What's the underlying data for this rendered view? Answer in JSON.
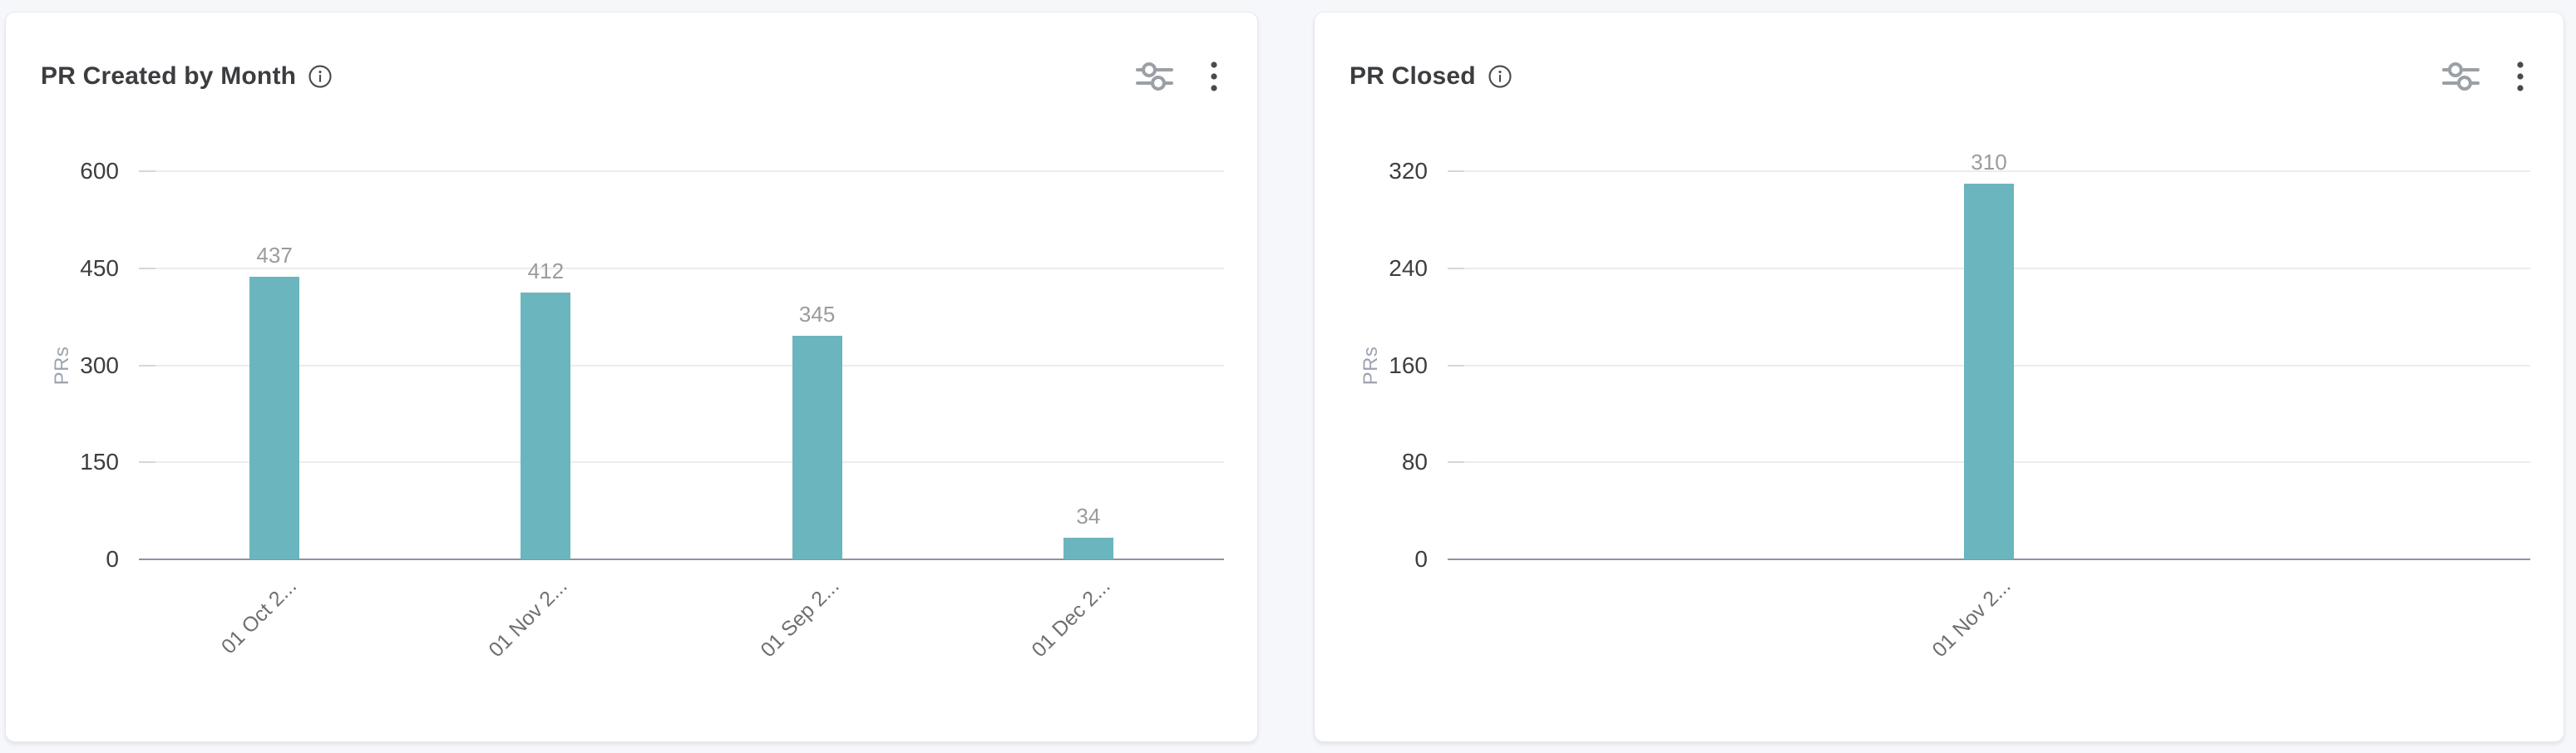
{
  "page": {
    "background": "#f6f7fb"
  },
  "colors": {
    "card": "#ffffff",
    "card_border": "#e7e8ee",
    "bar": "#6bb5bf",
    "gridline": "#ececec",
    "axis_line": "#8b93a5",
    "title_text": "#3b3d40",
    "y_tick_text": "#3e3e3e",
    "x_tick_text": "#6f6f6f",
    "value_label_text": "#9b9b9b",
    "axis_title_text": "#9ca3af",
    "icon_gray": "#9aa0a5",
    "icon_dark": "#4a4a4a"
  },
  "panels": [
    {
      "title": "PR Created by Month",
      "icons": [
        "info-circle-icon",
        "horizontal-sliders-icon",
        "kebab-menu-icon"
      ]
    },
    {
      "title": "PR Closed",
      "icons": [
        "info-circle-icon",
        "horizontal-sliders-icon",
        "kebab-menu-icon"
      ]
    }
  ],
  "chart_data": [
    {
      "type": "bar",
      "title": "PR Created by Month",
      "categories": [
        "01 Oct 2...",
        "01 Nov 2...",
        "01 Sep 2...",
        "01 Dec 2..."
      ],
      "values": [
        437,
        412,
        345,
        34
      ],
      "xlabel": "",
      "ylabel": "PRs",
      "ylim": [
        0,
        600
      ],
      "yticks": [
        0,
        150,
        300,
        450,
        600
      ],
      "grid": true,
      "legend": false,
      "data_labels": true,
      "bar_color": "#6bb5bf"
    },
    {
      "type": "bar",
      "title": "PR Closed",
      "categories": [
        "01 Nov 2..."
      ],
      "values": [
        310
      ],
      "xlabel": "",
      "ylabel": "PRs",
      "ylim": [
        0,
        320
      ],
      "yticks": [
        0,
        80,
        160,
        240,
        320
      ],
      "grid": true,
      "legend": false,
      "data_labels": true,
      "bar_color": "#6bb5bf"
    }
  ]
}
